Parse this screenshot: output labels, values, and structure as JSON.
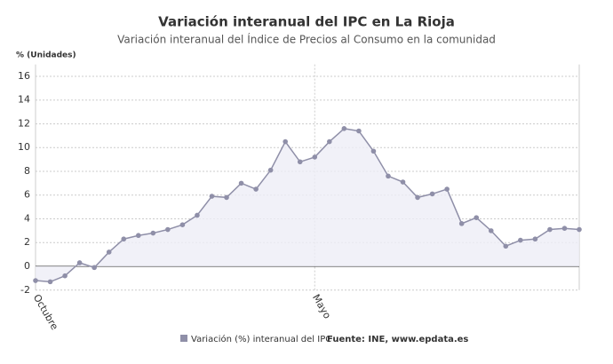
{
  "chart_data": {
    "type": "area",
    "title": "Variación interanual del IPC en La Rioja",
    "subtitle": "Variación interanual del Índice de Precios al Consumo en la comunidad",
    "y_label": "% (Unidades)",
    "source": "Fuente: INE, www.epdata.es",
    "categories": [
      "Octubre",
      null,
      null,
      null,
      null,
      null,
      null,
      null,
      null,
      null,
      null,
      null,
      null,
      null,
      null,
      null,
      null,
      null,
      null,
      "Mayo",
      null,
      null,
      null,
      null,
      null,
      null,
      null,
      null,
      null,
      null,
      null,
      null,
      null,
      null,
      null,
      null,
      null,
      null
    ],
    "series": [
      {
        "name": "Variación (%) interanual del IPC",
        "color": "#8f8fa8",
        "values": [
          -1.2,
          -1.3,
          -0.8,
          0.3,
          -0.1,
          1.2,
          2.3,
          2.6,
          2.8,
          3.1,
          3.5,
          4.3,
          5.9,
          5.8,
          7.0,
          6.5,
          8.1,
          10.5,
          8.8,
          9.2,
          10.5,
          11.6,
          11.4,
          9.7,
          7.6,
          7.1,
          5.8,
          6.1,
          6.5,
          3.6,
          4.1,
          3.0,
          1.7,
          2.2,
          2.3,
          3.1,
          3.2,
          3.1
        ]
      }
    ],
    "ylim": [
      -2,
      17
    ],
    "yticks": [
      -2,
      0,
      2,
      4,
      6,
      8,
      10,
      12,
      14,
      16
    ],
    "grid": true
  }
}
